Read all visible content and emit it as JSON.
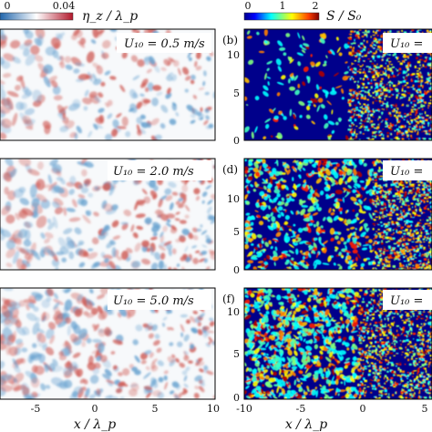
{
  "colorbars": {
    "left": {
      "label": "η_z / λ_p",
      "ticks": [
        "0",
        "0.04"
      ],
      "colors": [
        "#2166ac",
        "#ffffff",
        "#b2182b"
      ]
    },
    "right": {
      "label": "S / S₀",
      "ticks": [
        "0",
        "1",
        "2"
      ],
      "colors": [
        "#00008b",
        "#0000ff",
        "#00ffff",
        "#7fff7f",
        "#ffff00",
        "#ff7f00",
        "#ff0000",
        "#7f0000"
      ]
    }
  },
  "panels": [
    {
      "id": "a",
      "tag": "",
      "wind_label": "U₁₀ = 0.5 m/s",
      "type": "eta"
    },
    {
      "id": "b",
      "tag": "(b)",
      "wind_label": "U₁₀ =",
      "type": "slope"
    },
    {
      "id": "c",
      "tag": "",
      "wind_label": "U₁₀ = 2.0 m/s",
      "type": "eta"
    },
    {
      "id": "d",
      "tag": "(d)",
      "wind_label": "U₁₀ =",
      "type": "slope"
    },
    {
      "id": "e",
      "tag": "",
      "wind_label": "U₁₀ = 5.0 m/s",
      "type": "eta"
    },
    {
      "id": "f",
      "tag": "(f)",
      "wind_label": "U₁₀ =",
      "type": "slope"
    }
  ],
  "left_axis": {
    "xlabel": "x / λ_p",
    "xticks": [
      "-5",
      "0",
      "5",
      "10"
    ]
  },
  "right_axis": {
    "xlabel": "x / λ_p",
    "xticks": [
      "-10",
      "-5",
      "0",
      "5"
    ],
    "yticks": [
      "0",
      "5",
      "10"
    ]
  },
  "chart_data": {
    "type": "heatmap",
    "panels": [
      {
        "panel": "a",
        "quantity": "η_z/λ_p",
        "U10": 0.5,
        "xrange": [
          -8,
          10
        ],
        "clim": [
          0,
          0.04
        ]
      },
      {
        "panel": "b",
        "quantity": "S/S₀",
        "U10": 0.5,
        "xrange": [
          -10,
          5
        ],
        "yrange": [
          0,
          12
        ],
        "clim": [
          0,
          2
        ]
      },
      {
        "panel": "c",
        "quantity": "η_z/λ_p",
        "U10": 2.0,
        "xrange": [
          -8,
          10
        ],
        "clim": [
          0,
          0.04
        ]
      },
      {
        "panel": "d",
        "quantity": "S/S₀",
        "U10": 2.0,
        "xrange": [
          -10,
          5
        ],
        "yrange": [
          0,
          12
        ],
        "clim": [
          0,
          2
        ]
      },
      {
        "panel": "e",
        "quantity": "η_z/λ_p",
        "U10": 5.0,
        "xrange": [
          -8,
          10
        ],
        "clim": [
          0,
          0.04
        ]
      },
      {
        "panel": "f",
        "quantity": "S/S₀",
        "U10": 5.0,
        "xrange": [
          -10,
          5
        ],
        "yrange": [
          0,
          12
        ],
        "clim": [
          0,
          2
        ]
      }
    ]
  }
}
